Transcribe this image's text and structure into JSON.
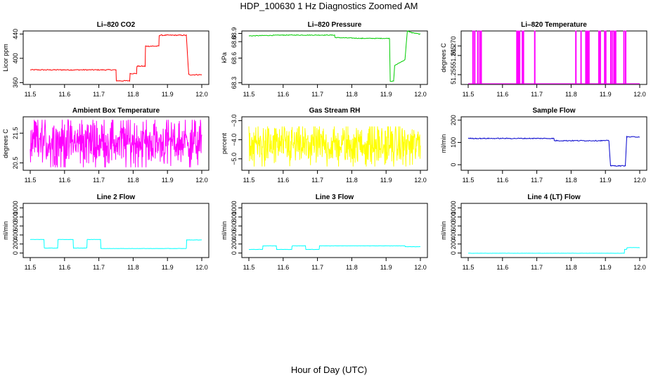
{
  "figure": {
    "title": "HDP_100630  1 Hz Diagnostics Zoomed AM",
    "xlabel": "Hour of Day (UTC)"
  },
  "chart_data": [
    {
      "type": "line",
      "title": "Li–820 CO2",
      "ylabel": "Licor ppm",
      "color": "#ff0000",
      "xlim": [
        11.5,
        12.0
      ],
      "ylim": [
        357,
        445
      ],
      "xticks": [
        11.5,
        11.6,
        11.7,
        11.8,
        11.9,
        12.0
      ],
      "xtick_labels": [
        "11.5",
        "11.6",
        "11.7",
        "11.8",
        "11.9",
        "12.0"
      ],
      "yticks": [
        360,
        400,
        440
      ],
      "ytick_labels": [
        "360",
        "400",
        "440"
      ],
      "noise": 0.8,
      "x": [
        11.5,
        11.75,
        11.751,
        11.79,
        11.791,
        11.81,
        11.811,
        11.835,
        11.836,
        11.875,
        11.876,
        11.955,
        11.962,
        12.0
      ],
      "y": [
        381,
        381,
        363,
        363,
        375,
        375,
        387,
        387,
        420,
        420,
        438,
        438,
        373,
        373
      ]
    },
    {
      "type": "line",
      "title": "Li–820 Pressure",
      "ylabel": "kPa",
      "color": "#00cc00",
      "xlim": [
        11.5,
        12.0
      ],
      "ylim": [
        68.28,
        68.93
      ],
      "xticks": [
        11.5,
        11.6,
        11.7,
        11.8,
        11.9,
        12.0
      ],
      "xtick_labels": [
        "11.5",
        "11.6",
        "11.7",
        "11.8",
        "11.9",
        "12.0"
      ],
      "yticks": [
        68.3,
        68.6,
        68.8,
        68.9
      ],
      "ytick_labels": [
        "68.3",
        "68.6",
        "68.8",
        "68.9"
      ],
      "noise": 0.004,
      "x": [
        11.5,
        11.6,
        11.75,
        11.751,
        11.83,
        11.91,
        11.912,
        11.922,
        11.925,
        11.955,
        11.962,
        11.975,
        12.0
      ],
      "y": [
        68.87,
        68.88,
        68.88,
        68.85,
        68.84,
        68.84,
        68.32,
        68.32,
        68.51,
        68.58,
        68.93,
        68.91,
        68.89
      ]
    },
    {
      "type": "line",
      "title": "Li–820 Temperature",
      "ylabel": "degrees C",
      "color": "#ff00ff",
      "xlim": [
        11.5,
        12.0
      ],
      "ylim": [
        51.2499,
        51.2778
      ],
      "xticks": [
        11.5,
        11.6,
        11.7,
        11.8,
        11.9,
        12.0
      ],
      "xtick_labels": [
        "11.5",
        "11.6",
        "11.7",
        "11.8",
        "11.9",
        "12.0"
      ],
      "yticks": [
        51.255,
        51.265,
        51.27
      ],
      "ytick_labels": [
        "51.255",
        "51.265",
        "51.270"
      ],
      "baseline": 51.2503,
      "high": 51.2778,
      "spikes": [
        11.513,
        11.518,
        11.527,
        11.533,
        11.537,
        11.641,
        11.645,
        11.649,
        11.657,
        11.66,
        11.693,
        11.813,
        11.828,
        11.842,
        11.845,
        11.848,
        11.851,
        11.88,
        11.884,
        11.897,
        11.9,
        11.915,
        11.92,
        11.925,
        11.929,
        11.953,
        11.958
      ]
    },
    {
      "type": "line",
      "title": "Ambient Box Temperature",
      "ylabel": "degrees C",
      "color": "#ff00ff",
      "xlim": [
        11.5,
        12.0
      ],
      "ylim": [
        20.25,
        22.05
      ],
      "xticks": [
        11.5,
        11.6,
        11.7,
        11.8,
        11.9,
        12.0
      ],
      "xtick_labels": [
        "11.5",
        "11.6",
        "11.7",
        "11.8",
        "11.9",
        "12.0"
      ],
      "yticks": [
        20.5,
        21.5
      ],
      "ytick_labels": [
        "20.5",
        "21.5"
      ],
      "noise_band": [
        20.35,
        21.95
      ],
      "center": 21.2
    },
    {
      "type": "line",
      "title": "Gas Stream RH",
      "ylabel": "percent",
      "color": "#ffff00",
      "xlim": [
        11.5,
        12.0
      ],
      "ylim": [
        -5.6,
        -2.8
      ],
      "xticks": [
        11.5,
        11.6,
        11.7,
        11.8,
        11.9,
        12.0
      ],
      "xtick_labels": [
        "11.5",
        "11.6",
        "11.7",
        "11.8",
        "11.9",
        "12.0"
      ],
      "yticks": [
        -5.0,
        -4.0,
        -3.0
      ],
      "ytick_labels": [
        "−5.0",
        "−4.0",
        "−3.0"
      ],
      "noise_band": [
        -5.4,
        -3.3
      ],
      "center": -4.3
    },
    {
      "type": "line",
      "title": "Sample Flow",
      "ylabel": "ml/min",
      "color": "#0000cc",
      "xlim": [
        11.5,
        12.0
      ],
      "ylim": [
        -25,
        215
      ],
      "xticks": [
        11.5,
        11.6,
        11.7,
        11.8,
        11.9,
        12.0
      ],
      "xtick_labels": [
        "11.5",
        "11.6",
        "11.7",
        "11.8",
        "11.9",
        "12.0"
      ],
      "yticks": [
        0,
        100,
        200
      ],
      "ytick_labels": [
        "0",
        "100",
        "200"
      ],
      "noise": 2,
      "x": [
        11.5,
        11.75,
        11.751,
        11.91,
        11.915,
        11.958,
        11.962,
        12.0
      ],
      "y": [
        118,
        118,
        108,
        108,
        -5,
        -5,
        125,
        125
      ]
    },
    {
      "type": "line",
      "title": "Line 2 Flow",
      "ylabel": "ml/min",
      "color": "#00ffff",
      "xlim": [
        11.5,
        12.0
      ],
      "ylim": [
        -100,
        1100
      ],
      "xticks": [
        11.5,
        11.6,
        11.7,
        11.8,
        11.9,
        12.0
      ],
      "xtick_labels": [
        "11.5",
        "11.6",
        "11.7",
        "11.8",
        "11.9",
        "12.0"
      ],
      "yticks": [
        0,
        200,
        400,
        600,
        800,
        1000
      ],
      "ytick_labels": [
        "0",
        "200",
        "400",
        "600",
        "800",
        "1000"
      ],
      "noise": 3,
      "x": [
        11.5,
        11.54,
        11.541,
        11.58,
        11.581,
        11.625,
        11.626,
        11.665,
        11.666,
        11.705,
        11.706,
        11.955,
        11.956,
        12.0
      ],
      "y": [
        300,
        300,
        110,
        110,
        300,
        300,
        110,
        110,
        300,
        300,
        100,
        100,
        290,
        290
      ]
    },
    {
      "type": "line",
      "title": "Line 3 Flow",
      "ylabel": "ml/min",
      "color": "#00ffff",
      "xlim": [
        11.5,
        12.0
      ],
      "ylim": [
        -100,
        1100
      ],
      "xticks": [
        11.5,
        11.6,
        11.7,
        11.8,
        11.9,
        12.0
      ],
      "xtick_labels": [
        "11.5",
        "11.6",
        "11.7",
        "11.8",
        "11.9",
        "12.0"
      ],
      "yticks": [
        0,
        200,
        400,
        600,
        800,
        1000
      ],
      "ytick_labels": [
        "0",
        "200",
        "400",
        "600",
        "800",
        "1000"
      ],
      "noise": 3,
      "x": [
        11.5,
        11.54,
        11.541,
        11.58,
        11.581,
        11.625,
        11.626,
        11.665,
        11.666,
        11.705,
        11.706,
        11.955,
        11.956,
        12.0
      ],
      "y": [
        80,
        80,
        160,
        160,
        80,
        80,
        160,
        160,
        80,
        80,
        160,
        160,
        140,
        140
      ]
    },
    {
      "type": "line",
      "title": "Line 4 (LT) Flow",
      "ylabel": "ml/min",
      "color": "#00ffff",
      "xlim": [
        11.5,
        12.0
      ],
      "ylim": [
        -100,
        1100
      ],
      "xticks": [
        11.5,
        11.6,
        11.7,
        11.8,
        11.9,
        12.0
      ],
      "xtick_labels": [
        "11.5",
        "11.6",
        "11.7",
        "11.8",
        "11.9",
        "12.0"
      ],
      "yticks": [
        0,
        200,
        400,
        600,
        800,
        1000
      ],
      "ytick_labels": [
        "0",
        "200",
        "400",
        "600",
        "800",
        "1000"
      ],
      "noise": 2,
      "x": [
        11.5,
        11.955,
        11.956,
        11.962,
        11.963,
        12.0
      ],
      "y": [
        -5,
        -5,
        80,
        80,
        120,
        120
      ]
    }
  ]
}
